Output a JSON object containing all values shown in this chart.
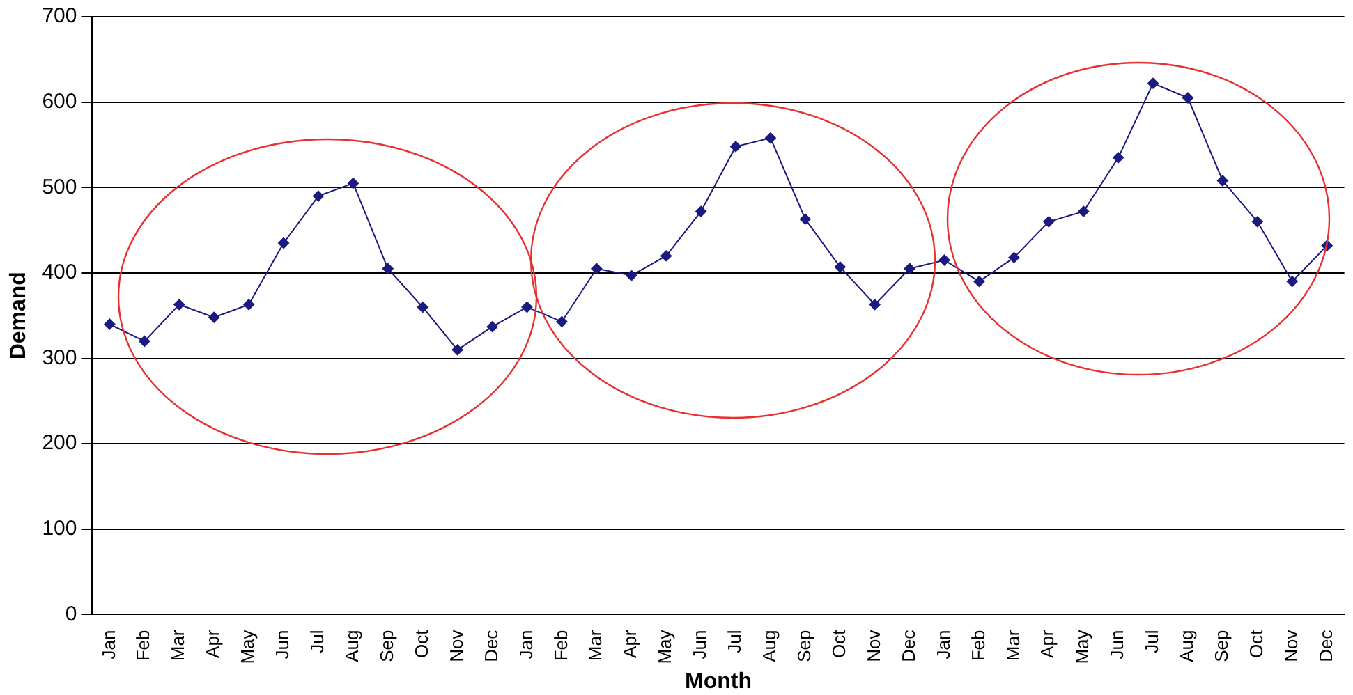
{
  "chart_data": {
    "type": "line",
    "xlabel": "Month",
    "ylabel": "Demand",
    "categories": [
      "Jan",
      "Feb",
      "Mar",
      "Apr",
      "May",
      "Jun",
      "Jul",
      "Aug",
      "Sep",
      "Oct",
      "Nov",
      "Dec",
      "Jan",
      "Feb",
      "Mar",
      "Apr",
      "May",
      "Jun",
      "Jul",
      "Aug",
      "Sep",
      "Oct",
      "Nov",
      "Dec",
      "Jan",
      "Feb",
      "Mar",
      "Apr",
      "May",
      "Jun",
      "Jul",
      "Aug",
      "Sep",
      "Oct",
      "Nov",
      "Dec"
    ],
    "series": [
      {
        "color": "#1a1a80",
        "values": [
          340,
          320,
          363,
          348,
          363,
          435,
          490,
          505,
          405,
          360,
          310,
          337,
          360,
          343,
          405,
          397,
          420,
          472,
          548,
          558,
          463,
          407,
          363,
          405,
          415,
          390,
          418,
          460,
          472,
          535,
          622,
          605,
          508,
          460,
          390,
          432
        ]
      }
    ],
    "ylim": [
      0,
      700
    ],
    "yticks": [
      0,
      100,
      200,
      300,
      400,
      500,
      600,
      700
    ],
    "grid": "y",
    "legend": false,
    "marker": "diamond",
    "line_style": "solid"
  }
}
